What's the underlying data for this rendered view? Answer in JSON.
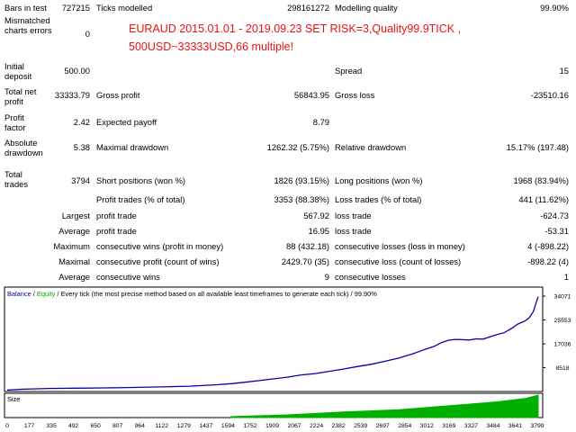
{
  "report": {
    "bars_label": "Bars in test",
    "bars_value": "727215",
    "ticks_label": "Ticks modelled",
    "ticks_value": "298161272",
    "quality_label": "Modelling quality",
    "quality_value": "99.90%",
    "mismatch_label": "Mismatched charts errors",
    "mismatch_value": "0",
    "annotation_line1": "EURAUD 2015.01.01 - 2019.09.23 SET RISK=3,Quality99.9TICK ,",
    "annotation_line2": "500USD~33333USD,66 multiple!",
    "deposit_label": "Initial deposit",
    "deposit_value": "500.00",
    "spread_label": "Spread",
    "spread_value": "15",
    "netprofit_label": "Total net profit",
    "netprofit_value": "33333.79",
    "grossprofit_label": "Gross profit",
    "grossprofit_value": "56843.95",
    "grossloss_label": "Gross loss",
    "grossloss_value": "-23510.16",
    "pf_label": "Profit factor",
    "pf_value": "2.42",
    "payoff_label": "Expected payoff",
    "payoff_value": "8.79",
    "absdd_label": "Absolute drawdown",
    "absdd_value": "5.38",
    "maxdd_label": "Maximal drawdown",
    "maxdd_value": "1262.32 (5.75%)",
    "reldd_label": "Relative drawdown",
    "reldd_value": "15.17% (197.48)",
    "trades_label": "Total trades",
    "trades_value": "3794",
    "short_label": "Short positions (won %)",
    "short_value": "1826 (93.15%)",
    "long_label": "Long positions (won %)",
    "long_value": "1968 (83.94%)",
    "profittrades_label": "Profit trades (% of total)",
    "profittrades_value": "3353 (88.38%)",
    "losstrades_label": "Loss trades (% of total)",
    "losstrades_value": "441 (11.62%)",
    "largest_label": "Largest",
    "largest_profit_label": "profit trade",
    "largest_profit_value": "567.92",
    "largest_loss_label": "loss trade",
    "largest_loss_value": "-624.73",
    "average_label": "Average",
    "average_profit_label": "profit trade",
    "average_profit_value": "16.95",
    "average_loss_label": "loss trade",
    "average_loss_value": "-53.31",
    "maximum_label": "Maximum",
    "cwins_money_label": "consecutive wins (profit in money)",
    "cwins_money_value": "88 (432.18)",
    "closses_money_label": "consecutive losses (loss in money)",
    "closses_money_value": "4 (-898.22)",
    "maximal_label": "Maximal",
    "cprofit_count_label": "consecutive profit (count of wins)",
    "cprofit_count_value": "2429.70 (35)",
    "closs_count_label": "consecutive loss (count of losses)",
    "closs_count_value": "-898.22 (4)",
    "average2_label": "Average",
    "avg_cwins_label": "consecutive wins",
    "avg_cwins_value": "9",
    "avg_closses_label": "consecutive losses",
    "avg_closses_value": "1"
  },
  "chart_header": {
    "balance": "Balance",
    "sep1": " / ",
    "equity": "Equity",
    "rest": " / Every tick (the most precise method based on all available least timeframes to generate each tick) / 99.90%"
  },
  "size_label": "Size",
  "colors": {
    "balance": "#0000aa",
    "equity": "#00aa00",
    "size": "#00b000",
    "annotation": "#ee1111"
  },
  "chart_data": {
    "type": "line",
    "title": "",
    "xlabel": "",
    "ylabel": "",
    "ylim": [
      0,
      34071
    ],
    "yticks": [
      8518,
      17036,
      25553,
      34071
    ],
    "xlim": [
      0,
      3794
    ],
    "xticks": [
      0,
      177,
      335,
      492,
      650,
      807,
      964,
      1122,
      1279,
      1437,
      1594,
      1752,
      1909,
      2067,
      2224,
      2382,
      2539,
      2697,
      2854,
      3012,
      3169,
      3327,
      3484,
      3641,
      3799
    ],
    "grid": false,
    "series": [
      {
        "name": "Balance",
        "x": [
          0,
          100,
          300,
          500,
          700,
          900,
          1100,
          1300,
          1500,
          1600,
          1700,
          1800,
          1900,
          2000,
          2100,
          2200,
          2300,
          2400,
          2500,
          2600,
          2700,
          2800,
          2900,
          2950,
          3000,
          3050,
          3100,
          3150,
          3200,
          3250,
          3300,
          3350,
          3400,
          3450,
          3500,
          3550,
          3600,
          3650,
          3700,
          3730,
          3760,
          3780,
          3794
        ],
        "y": [
          500,
          800,
          1100,
          1200,
          1300,
          1450,
          1650,
          1900,
          2400,
          2800,
          3300,
          3900,
          4500,
          5100,
          5900,
          6400,
          7200,
          8000,
          8900,
          9700,
          10800,
          12000,
          13500,
          14400,
          15300,
          16100,
          17400,
          18300,
          18600,
          18500,
          18400,
          18800,
          18700,
          19500,
          20300,
          21000,
          22400,
          24100,
          25200,
          26300,
          28600,
          31800,
          33834
        ]
      }
    ],
    "size_series": {
      "name": "Size",
      "x": [
        1600,
        2000,
        2400,
        2800,
        3200,
        3500,
        3700,
        3794
      ],
      "y": [
        0.05,
        0.12,
        0.25,
        0.35,
        0.55,
        0.7,
        0.85,
        1.0
      ]
    }
  }
}
